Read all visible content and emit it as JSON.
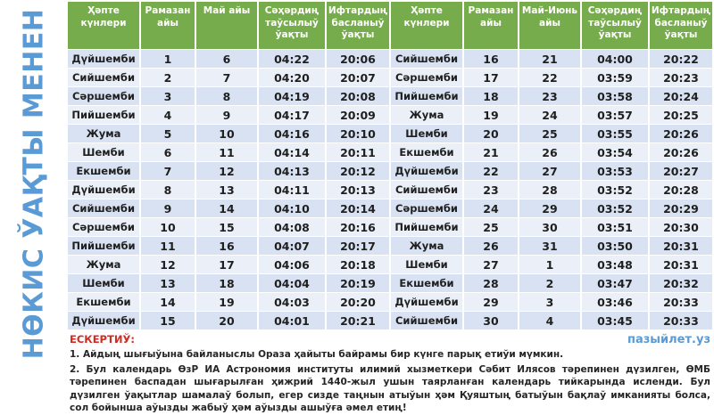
{
  "title_vertical": "НӨКИС ЎАҚТЫ МЕНЕН",
  "colors": {
    "header_green": "#76AC4B",
    "title_blue": "#5B9BD5",
    "row_dark": "#D9E2F3",
    "row_light": "#EAEFF8",
    "note_red": "#D12C23"
  },
  "tables": [
    {
      "headers": [
        "Ҳәпте күнлери",
        "Рамазан айы",
        "Май айы",
        "Сәҳәрдиң таўсылыў ўақты",
        "Ифтардың басланыў ўақты"
      ],
      "rows": [
        [
          "Дүйшемби",
          "1",
          "6",
          "04:22",
          "20:06"
        ],
        [
          "Сийшемби",
          "2",
          "7",
          "04:20",
          "20:07"
        ],
        [
          "Сәршемби",
          "3",
          "8",
          "04:19",
          "20:08"
        ],
        [
          "Пийшемби",
          "4",
          "9",
          "04:17",
          "20:09"
        ],
        [
          "Жума",
          "5",
          "10",
          "04:16",
          "20:10"
        ],
        [
          "Шемби",
          "6",
          "11",
          "04:14",
          "20:11"
        ],
        [
          "Екшемби",
          "7",
          "12",
          "04:13",
          "20:12"
        ],
        [
          "Дүйшемби",
          "8",
          "13",
          "04:11",
          "20:13"
        ],
        [
          "Сийшемби",
          "9",
          "14",
          "04:10",
          "20:14"
        ],
        [
          "Сәршемби",
          "10",
          "15",
          "04:08",
          "20:16"
        ],
        [
          "Пийшемби",
          "11",
          "16",
          "04:07",
          "20:17"
        ],
        [
          "Жума",
          "12",
          "17",
          "04:06",
          "20:18"
        ],
        [
          "Шемби",
          "13",
          "18",
          "04:04",
          "20:19"
        ],
        [
          "Екшемби",
          "14",
          "19",
          "04:03",
          "20:20"
        ],
        [
          "Дүйшемби",
          "15",
          "20",
          "04:01",
          "20:21"
        ]
      ]
    },
    {
      "headers": [
        "Ҳәпте күнлери",
        "Рамазан айы",
        "Май-Июнь айы",
        "Сәҳәрдиң таўсылыў ўақты",
        "Ифтардың басланыў ўақты"
      ],
      "rows": [
        [
          "Сийшемби",
          "16",
          "21",
          "04:00",
          "20:22"
        ],
        [
          "Сәршемби",
          "17",
          "22",
          "03:59",
          "20:23"
        ],
        [
          "Пийшемби",
          "18",
          "23",
          "03:58",
          "20:24"
        ],
        [
          "Жума",
          "19",
          "24",
          "03:57",
          "20:25"
        ],
        [
          "Шемби",
          "20",
          "25",
          "03:55",
          "20:26"
        ],
        [
          "Екшемби",
          "21",
          "26",
          "03:54",
          "20:26"
        ],
        [
          "Дүйшемби",
          "22",
          "27",
          "03:53",
          "20:27"
        ],
        [
          "Сийшемби",
          "23",
          "28",
          "03:52",
          "20:28"
        ],
        [
          "Сәршемби",
          "24",
          "29",
          "03:52",
          "20:29"
        ],
        [
          "Пийшемби",
          "25",
          "30",
          "03:51",
          "20:30"
        ],
        [
          "Жума",
          "26",
          "31",
          "03:50",
          "20:31"
        ],
        [
          "Шемби",
          "27",
          "1",
          "03:48",
          "20:31"
        ],
        [
          "Екшемби",
          "28",
          "2",
          "03:47",
          "20:32"
        ],
        [
          "Дүйшемби",
          "29",
          "3",
          "03:46",
          "20:33"
        ],
        [
          "Сийшемби",
          "30",
          "4",
          "03:45",
          "20:33"
        ]
      ]
    }
  ],
  "footer": {
    "label": "ЕСКЕРТИЎ:",
    "site": "пазыйлет.уз",
    "notes": [
      "1.  Айдың шығыўына байланыслы Ораза ҳайыты байрамы бир күнге парық етиўи мүмкин.",
      "2. Бул календарь ӨзР ИА Астрономия институты илимий хызметкери Сәбит Илясов тәрепинен дүзилген, ӨМБ тәрепинен баспадан шығарылған ҳижрий 1440-жыл ушын таярланған календарь тийкарында исленди. Бул дүзилген ўақытлар шамалаў болып, егер сизде таңнын атыўын ҳәм Қуяштың батыўын бақлаў имканияты болса, сол бойынша аўызды жабыў ҳәм аўызды ашыўға әмел етиң!"
    ]
  }
}
